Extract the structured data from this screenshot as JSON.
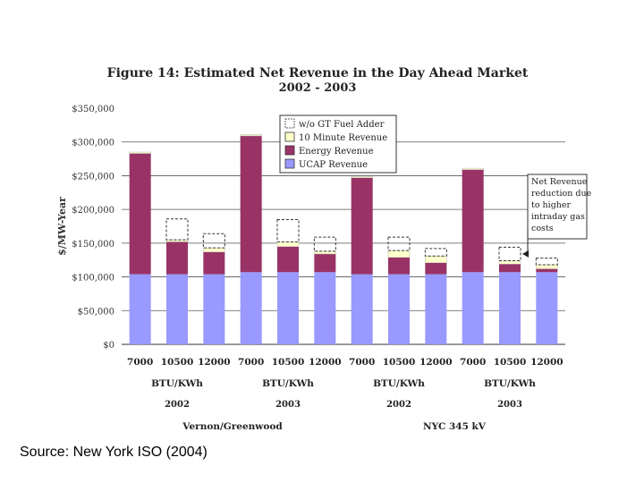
{
  "chart_data": {
    "type": "bar",
    "stacked": true,
    "title": "Figure 14:  Estimated Net Revenue in the Day Ahead Market",
    "subtitle": "2002 - 2003",
    "ylabel": "$/MW-Year",
    "ylim": [
      0,
      350000
    ],
    "yticks": [
      {
        "value": 0,
        "label": "$0"
      },
      {
        "value": 50000,
        "label": "$50,000"
      },
      {
        "value": 100000,
        "label": "$100,000"
      },
      {
        "value": 150000,
        "label": "$150,000"
      },
      {
        "value": 200000,
        "label": "$200,000"
      },
      {
        "value": 250000,
        "label": "$250,000"
      },
      {
        "value": 300000,
        "label": "$300,000"
      },
      {
        "value": 350000,
        "label": "$350,000"
      }
    ],
    "categories": [
      "7000",
      "10500",
      "12000",
      "7000",
      "10500",
      "12000",
      "7000",
      "10500",
      "12000",
      "7000",
      "10500",
      "12000"
    ],
    "group_labels": [
      {
        "unit": "BTU/KWh",
        "year": "2002"
      },
      {
        "unit": "BTU/KWh",
        "year": "2003"
      },
      {
        "unit": "BTU/KWh",
        "year": "2002"
      },
      {
        "unit": "BTU/KWh",
        "year": "2003"
      }
    ],
    "region_labels": [
      "Vernon/Greenwood",
      "NYC 345 kV"
    ],
    "series": [
      {
        "name": "UCAP Revenue",
        "color": "#9999ff",
        "values": [
          104000,
          104000,
          104000,
          107000,
          107000,
          107000,
          104000,
          104000,
          104000,
          107000,
          107000,
          107000
        ]
      },
      {
        "name": "Energy Revenue",
        "color": "#993366",
        "values": [
          179000,
          48000,
          33000,
          202000,
          38000,
          27000,
          143000,
          25000,
          17000,
          152000,
          12000,
          5000
        ]
      },
      {
        "name": "10 Minute Revenue",
        "color": "#ffffcc",
        "values": [
          2000,
          3000,
          6000,
          2000,
          7000,
          4000,
          2000,
          10000,
          10000,
          2000,
          5000,
          6000
        ]
      },
      {
        "name": "w/o GT Fuel Adder",
        "color": "#ffffff",
        "dashed": true,
        "values": [
          0,
          31000,
          21000,
          0,
          33000,
          21000,
          0,
          20000,
          11000,
          0,
          20000,
          10000
        ]
      }
    ],
    "legend_position": "top-right",
    "annotation": [
      "Net Revenue",
      "reduction due",
      "to higher",
      "intraday gas",
      "costs"
    ],
    "grid": true
  },
  "source": "Source: New York ISO (2004)"
}
